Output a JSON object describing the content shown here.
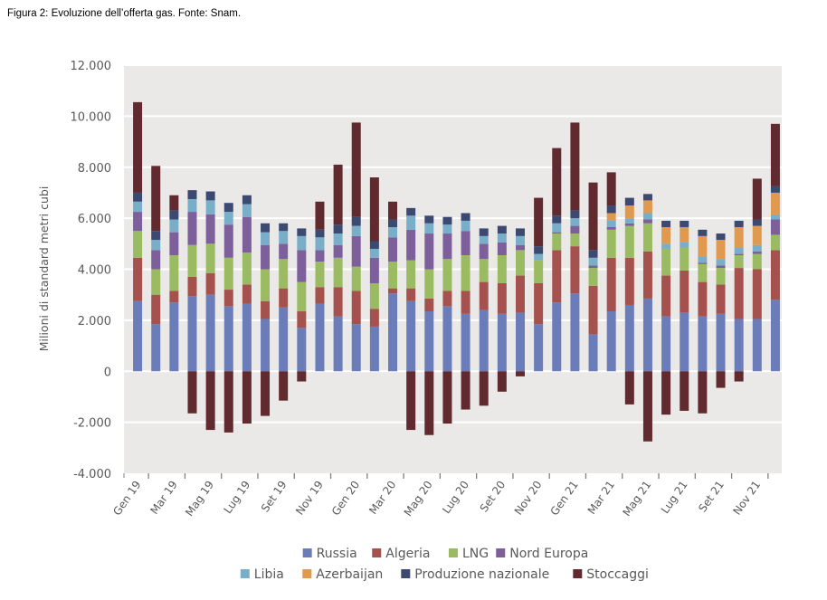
{
  "caption": "Figura 2: Evoluzione dell’offerta gas. Fonte: Snam.",
  "chart_data": {
    "type": "bar",
    "stacked": true,
    "title": "Figura 2: Evoluzione dell’offerta gas. Fonte: Snam.",
    "xlabel": "",
    "ylabel": "Milioni di standard metri cubi",
    "ylim": [
      -4000,
      12000
    ],
    "yticks": [
      -4000,
      -2000,
      0,
      2000,
      4000,
      6000,
      8000,
      10000,
      12000
    ],
    "ytick_labels": [
      "-4.000",
      "-2.000",
      "0",
      "2.000",
      "4.000",
      "6.000",
      "8.000",
      "10.000",
      "12.000"
    ],
    "grid": true,
    "legend_position": "bottom",
    "categories": [
      "Gen 19",
      "Feb 19",
      "Mar 19",
      "Apr 19",
      "Mag 19",
      "Giu 19",
      "Lug 19",
      "Ago 19",
      "Set 19",
      "Ott 19",
      "Nov 19",
      "Dic 19",
      "Gen 20",
      "Feb 20",
      "Mar 20",
      "Apr 20",
      "Mag 20",
      "Giu 20",
      "Lug 20",
      "Ago 20",
      "Set 20",
      "Ott 20",
      "Nov 20",
      "Dic 20",
      "Gen 21",
      "Feb 21",
      "Mar 21",
      "Apr 21",
      "Mag 21",
      "Giu 21",
      "Lug 21",
      "Ago 21",
      "Set 21",
      "Ott 21",
      "Nov 21",
      "Dic 21"
    ],
    "xtick_labels": [
      "Gen 19",
      "Mar 19",
      "Mag 19",
      "Lug 19",
      "Set 19",
      "Nov 19",
      "Gen 20",
      "Mar 20",
      "Mag 20",
      "Lug 20",
      "Set 20",
      "Nov 20",
      "Gen 21",
      "Mar 21",
      "Mag 21",
      "Lug 21",
      "Set 21",
      "Nov 21"
    ],
    "series": [
      {
        "name": "Russia",
        "color": "#6b7db8",
        "values": [
          2750,
          1850,
          2700,
          2950,
          3000,
          2550,
          2650,
          2050,
          2500,
          1700,
          2650,
          2150,
          1850,
          1750,
          3050,
          2750,
          2350,
          2550,
          2250,
          2400,
          2250,
          2300,
          1850,
          2700,
          3050,
          1450,
          2350,
          2600,
          2850,
          2150,
          2300,
          2150,
          2250,
          2050,
          2050,
          2800
        ]
      },
      {
        "name": "Algeria",
        "color": "#a5524e",
        "values": [
          1700,
          1150,
          450,
          750,
          850,
          650,
          750,
          700,
          750,
          650,
          650,
          1150,
          1300,
          700,
          200,
          500,
          500,
          600,
          900,
          1100,
          1200,
          1450,
          1600,
          2050,
          1850,
          1900,
          2100,
          1850,
          1850,
          1600,
          1650,
          1350,
          1150,
          2000,
          1950,
          1950
        ]
      },
      {
        "name": "LNG",
        "color": "#9bbb62",
        "values": [
          1050,
          1000,
          1400,
          1250,
          1150,
          1250,
          1250,
          1250,
          1150,
          1150,
          1000,
          1150,
          950,
          1000,
          1050,
          1100,
          1150,
          1250,
          1400,
          900,
          1100,
          1000,
          900,
          650,
          500,
          700,
          1100,
          1250,
          1100,
          1050,
          900,
          700,
          650,
          500,
          600,
          600
        ]
      },
      {
        "name": "Nord Europa",
        "color": "#7d5f9b",
        "values": [
          750,
          750,
          900,
          1300,
          1150,
          1300,
          1400,
          950,
          600,
          1250,
          450,
          500,
          1200,
          1000,
          950,
          1200,
          1400,
          1000,
          950,
          600,
          500,
          200,
          0,
          50,
          300,
          100,
          100,
          100,
          150,
          0,
          0,
          50,
          100,
          50,
          100,
          600
        ]
      },
      {
        "name": "Libia",
        "color": "#79aec8",
        "values": [
          400,
          400,
          500,
          500,
          550,
          500,
          500,
          500,
          500,
          550,
          500,
          450,
          400,
          350,
          400,
          550,
          400,
          350,
          400,
          300,
          350,
          350,
          250,
          350,
          300,
          300,
          250,
          200,
          250,
          200,
          200,
          250,
          250,
          250,
          250,
          200
        ]
      },
      {
        "name": "Azerbaijan",
        "color": "#e09a4f",
        "values": [
          0,
          0,
          0,
          0,
          0,
          0,
          0,
          0,
          0,
          0,
          0,
          0,
          0,
          0,
          0,
          0,
          0,
          0,
          0,
          0,
          0,
          0,
          0,
          0,
          0,
          0,
          300,
          500,
          500,
          650,
          600,
          800,
          750,
          800,
          750,
          850
        ]
      },
      {
        "name": "Produzione nazionale",
        "color": "#3c4a72",
        "values": [
          350,
          350,
          350,
          350,
          350,
          350,
          350,
          350,
          300,
          300,
          300,
          350,
          350,
          300,
          300,
          300,
          300,
          300,
          300,
          300,
          300,
          300,
          300,
          300,
          300,
          300,
          300,
          300,
          250,
          250,
          250,
          250,
          250,
          250,
          250,
          250
        ]
      },
      {
        "name": "Stoccaggi",
        "color": "#602a2e",
        "values": [
          3550,
          2550,
          600,
          -1650,
          -2300,
          -2400,
          -2050,
          -1750,
          -1150,
          -400,
          1100,
          2350,
          3700,
          2500,
          700,
          -2300,
          -2500,
          -2050,
          -1500,
          -1350,
          -800,
          -200,
          1900,
          2650,
          3450,
          2650,
          1300,
          -1300,
          -2750,
          -1700,
          -1550,
          -1650,
          -650,
          -400,
          1600,
          2450
        ]
      }
    ]
  }
}
